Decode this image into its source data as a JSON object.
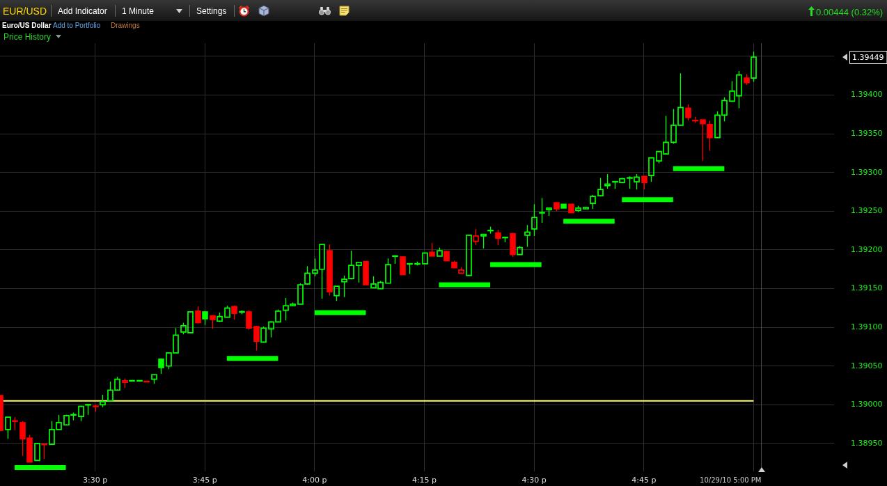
{
  "chart_data": {
    "type": "candlestick",
    "title": "EUR/USD",
    "subtitle": "Euro/US Dollar",
    "x": [
      "--10-29T15:17",
      "--10-29T15:18",
      "--10-29T15:19",
      "--10-29T15:20",
      "--10-29T15:21",
      "--10-29T15:22",
      "--10-29T15:23",
      "--10-29T15:24",
      "--10-29T15:25",
      "--10-29T15:26",
      "--10-29T15:27",
      "--10-29T15:28",
      "--10-29T15:29",
      "--10-29T15:30",
      "--10-29T15:31",
      "--10-29T15:32",
      "--10-29T15:33",
      "--10-29T15:34",
      "--10-29T15:35",
      "--10-29T15:36",
      "--10-29T15:37",
      "--10-29T15:38",
      "--10-29T15:39",
      "--10-29T15:40",
      "--10-29T15:41",
      "--10-29T15:42",
      "--10-29T15:43",
      "--10-29T15:44",
      "--10-29T15:45",
      "--10-29T15:46",
      "--10-29T15:47",
      "--10-29T15:48",
      "--10-29T15:49",
      "--10-29T15:50",
      "--10-29T15:51",
      "--10-29T15:52",
      "--10-29T15:53",
      "--10-29T15:54",
      "--10-29T15:55",
      "--10-29T15:56",
      "--10-29T15:57",
      "--10-29T15:58",
      "--10-29T15:59",
      "--10-29T16:00",
      "--10-29T16:01",
      "--10-29T16:02",
      "--10-29T16:03",
      "--10-29T16:04",
      "--10-29T16:05",
      "--10-29T16:06",
      "--10-29T16:07",
      "--10-29T16:08",
      "--10-29T16:09",
      "--10-29T16:10",
      "--10-29T16:11",
      "--10-29T16:12",
      "--10-29T16:13",
      "--10-29T16:14",
      "--10-29T16:15",
      "--10-29T16:16",
      "--10-29T16:17",
      "--10-29T16:18",
      "--10-29T16:19",
      "--10-29T16:20",
      "--10-29T16:21",
      "--10-29T16:22",
      "--10-29T16:23",
      "--10-29T16:24",
      "--10-29T16:25",
      "--10-29T16:26",
      "--10-29T16:27",
      "--10-29T16:28",
      "--10-29T16:29",
      "--10-29T16:30",
      "--10-29T16:31",
      "--10-29T16:32",
      "--10-29T16:33",
      "--10-29T16:34",
      "--10-29T16:35",
      "--10-29T16:36",
      "--10-29T16:37",
      "--10-29T16:38",
      "--10-29T16:39",
      "--10-29T16:40",
      "--10-29T16:41",
      "--10-29T16:42",
      "--10-29T16:43",
      "--10-29T16:44",
      "--10-29T16:45",
      "--10-29T16:46",
      "--10-29T16:47",
      "--10-29T16:48",
      "--10-29T16:49",
      "--10-29T16:50",
      "--10-29T16:51",
      "--10-29T16:52",
      "--10-29T16:53",
      "--10-29T16:54",
      "--10-29T16:55",
      "--10-29T16:56",
      "--10-29T16:57",
      "--10-29T16:58",
      "--10-29T16:59",
      "--10-29T17:00"
    ],
    "series": [
      {
        "ohlc": [
          [
            1.39012,
            1.39012,
            1.38967,
            1.38967
          ],
          [
            1.38968,
            1.38984,
            1.38956,
            1.38984
          ],
          [
            1.38979,
            1.38984,
            1.38967,
            1.38979
          ],
          [
            1.38977,
            1.38979,
            1.38934,
            1.38956
          ],
          [
            1.38957,
            1.38961,
            1.38926,
            1.38926
          ],
          [
            1.38928,
            1.3895,
            1.38928,
            1.3895
          ],
          [
            1.38949,
            1.3895,
            1.3893,
            1.38949
          ],
          [
            1.38949,
            1.38979,
            1.38949,
            1.38968
          ],
          [
            1.38968,
            1.38987,
            1.38968,
            1.38977
          ],
          [
            1.38974,
            1.38987,
            1.38974,
            1.38986
          ],
          [
            1.38987,
            1.3899,
            1.3898,
            1.38987
          ],
          [
            1.38985,
            1.38999,
            1.38979,
            1.38998
          ],
          [
            1.39,
            1.39,
            1.38987,
            1.39
          ],
          [
            1.38998,
            1.39,
            1.38991,
            1.38998
          ],
          [
            1.39,
            1.39013,
            1.38997,
            1.39004
          ],
          [
            1.39005,
            1.3903,
            1.39005,
            1.39019
          ],
          [
            1.39019,
            1.39036,
            1.39019,
            1.39033
          ],
          [
            1.39029,
            1.39034,
            1.39022,
            1.39031
          ],
          [
            1.39031,
            1.39031,
            1.39031,
            1.39031
          ],
          [
            1.39031,
            1.39031,
            1.39031,
            1.39031
          ],
          [
            1.3903,
            1.3903,
            1.3903,
            1.3903
          ],
          [
            1.39033,
            1.39039,
            1.39027,
            1.39039
          ],
          [
            1.39059,
            1.3906,
            1.3904,
            1.39048
          ],
          [
            1.3905,
            1.39067,
            1.39046,
            1.39067
          ],
          [
            1.39067,
            1.39099,
            1.39067,
            1.3909
          ],
          [
            1.39094,
            1.39106,
            1.39091,
            1.39102
          ],
          [
            1.39093,
            1.3912,
            1.39093,
            1.3912
          ],
          [
            1.39121,
            1.39127,
            1.39105,
            1.39106
          ],
          [
            1.3912,
            1.39121,
            1.39103,
            1.39111
          ],
          [
            1.39115,
            1.39115,
            1.39098,
            1.3911
          ],
          [
            1.39108,
            1.39119,
            1.39107,
            1.39114
          ],
          [
            1.39113,
            1.39128,
            1.39113,
            1.39125
          ],
          [
            1.39127,
            1.39128,
            1.3911,
            1.39118
          ],
          [
            1.3912,
            1.39122,
            1.39117,
            1.3912
          ],
          [
            1.3912,
            1.39122,
            1.39097,
            1.39099
          ],
          [
            1.39101,
            1.39102,
            1.3907,
            1.39082
          ],
          [
            1.39081,
            1.39101,
            1.39081,
            1.39099
          ],
          [
            1.39098,
            1.39108,
            1.39087,
            1.39107
          ],
          [
            1.39107,
            1.39123,
            1.39107,
            1.39121
          ],
          [
            1.39122,
            1.39138,
            1.39109,
            1.39128
          ],
          [
            1.39128,
            1.39132,
            1.39128,
            1.3913
          ],
          [
            1.3913,
            1.39157,
            1.3913,
            1.39155
          ],
          [
            1.39156,
            1.39179,
            1.39155,
            1.3917
          ],
          [
            1.3917,
            1.39189,
            1.39166,
            1.39174
          ],
          [
            1.39175,
            1.39207,
            1.39137,
            1.39207
          ],
          [
            1.39199,
            1.39207,
            1.39141,
            1.39146
          ],
          [
            1.39141,
            1.39153,
            1.39134,
            1.39153
          ],
          [
            1.39159,
            1.39167,
            1.39139,
            1.39162
          ],
          [
            1.39163,
            1.39199,
            1.39162,
            1.3918
          ],
          [
            1.3918,
            1.39184,
            1.39158,
            1.39184
          ],
          [
            1.39185,
            1.39185,
            1.39155,
            1.39155
          ],
          [
            1.39151,
            1.39166,
            1.39151,
            1.39156
          ],
          [
            1.3915,
            1.3916,
            1.3915,
            1.39158
          ],
          [
            1.39157,
            1.39189,
            1.39157,
            1.39181
          ],
          [
            1.39192,
            1.39192,
            1.39182,
            1.39192
          ],
          [
            1.39191,
            1.39192,
            1.39168,
            1.39168
          ],
          [
            1.39182,
            1.39182,
            1.39169,
            1.39182
          ],
          [
            1.39182,
            1.39185,
            1.3918,
            1.39182
          ],
          [
            1.39182,
            1.39196,
            1.39182,
            1.39196
          ],
          [
            1.39197,
            1.39209,
            1.39192,
            1.39192
          ],
          [
            1.39192,
            1.39203,
            1.39192,
            1.39199
          ],
          [
            1.39198,
            1.39199,
            1.39186,
            1.39186
          ],
          [
            1.39184,
            1.39186,
            1.39177,
            1.39177
          ],
          [
            1.3917,
            1.39178,
            1.3917,
            1.39174
          ],
          [
            1.39167,
            1.39219,
            1.39167,
            1.39219
          ],
          [
            1.39211,
            1.39227,
            1.39206,
            1.39218
          ],
          [
            1.39218,
            1.3922,
            1.39202,
            1.3922
          ],
          [
            1.39225,
            1.3923,
            1.39221,
            1.39225
          ],
          [
            1.39222,
            1.39226,
            1.39206,
            1.39215
          ],
          [
            1.39216,
            1.39216,
            1.3921,
            1.39216
          ],
          [
            1.39221,
            1.39222,
            1.39191,
            1.39194
          ],
          [
            1.39194,
            1.39205,
            1.39194,
            1.39203
          ],
          [
            1.39219,
            1.39232,
            1.39204,
            1.39223
          ],
          [
            1.39227,
            1.39259,
            1.39218,
            1.39242
          ],
          [
            1.39248,
            1.39267,
            1.39235,
            1.39248
          ],
          [
            1.39252,
            1.39254,
            1.39244,
            1.39254
          ],
          [
            1.39261,
            1.39261,
            1.3925,
            1.39253
          ],
          [
            1.39259,
            1.39259,
            1.39254,
            1.39254
          ],
          [
            1.39259,
            1.39259,
            1.39248,
            1.39248
          ],
          [
            1.39251,
            1.39257,
            1.39249,
            1.39254
          ],
          [
            1.39253,
            1.39255,
            1.39253,
            1.39255
          ],
          [
            1.3926,
            1.39271,
            1.39253,
            1.39269
          ],
          [
            1.3927,
            1.39293,
            1.39269,
            1.39278
          ],
          [
            1.39283,
            1.39298,
            1.39279,
            1.39285
          ],
          [
            1.39288,
            1.39288,
            1.39279,
            1.39288
          ],
          [
            1.39287,
            1.39293,
            1.39287,
            1.39292
          ],
          [
            1.39293,
            1.39295,
            1.39279,
            1.39293
          ],
          [
            1.39288,
            1.39298,
            1.39278,
            1.39294
          ],
          [
            1.39295,
            1.39295,
            1.39278,
            1.39287
          ],
          [
            1.39296,
            1.39319,
            1.39288,
            1.39319
          ],
          [
            1.39315,
            1.39327,
            1.39312,
            1.39327
          ],
          [
            1.39324,
            1.39373,
            1.39324,
            1.39339
          ],
          [
            1.39339,
            1.39382,
            1.39337,
            1.39361
          ],
          [
            1.39361,
            1.39428,
            1.39361,
            1.39384
          ],
          [
            1.39383,
            1.39388,
            1.39367,
            1.39371
          ],
          [
            1.39367,
            1.39372,
            1.39364,
            1.39367
          ],
          [
            1.39368,
            1.39368,
            1.39315,
            1.39363
          ],
          [
            1.39362,
            1.39367,
            1.39328,
            1.39345
          ],
          [
            1.39345,
            1.39379,
            1.39345,
            1.39374
          ],
          [
            1.39374,
            1.39397,
            1.39366,
            1.39393
          ],
          [
            1.39392,
            1.39418,
            1.39392,
            1.39405
          ],
          [
            1.39399,
            1.39431,
            1.39383,
            1.39426
          ],
          [
            1.39422,
            1.39427,
            1.39413,
            1.39416
          ],
          [
            1.39422,
            1.39456,
            1.39417,
            1.39449
          ]
        ],
        "colors": [
          "#ff0000",
          "#00ff00",
          "#ff0000",
          "#ff0000",
          "#ff0000",
          "#00ff00",
          "#ff0000",
          "#00ff00",
          "#00ff00",
          "#00ff00",
          "#00ff00",
          "#00ff00",
          "#00ff00",
          "#ff0000",
          "#00ff00",
          "#00ff00",
          "#00ff00",
          "#ff0000",
          "#00ff00",
          "#00ff00",
          "#ff0000",
          "#00ff00",
          "#00ff00",
          "#00ff00",
          "#00ff00",
          "#00ff00",
          "#00ff00",
          "#ff0000",
          "#00ff00",
          "#ff0000",
          "#00ff00",
          "#00ff00",
          "#ff0000",
          "#00ff00",
          "#ff0000",
          "#ff0000",
          "#00ff00",
          "#00ff00",
          "#00ff00",
          "#00ff00",
          "#00ff00",
          "#00ff00",
          "#00ff00",
          "#00ff00",
          "#00ff00",
          "#ff0000",
          "#00ff00",
          "#00ff00",
          "#00ff00",
          "#00ff00",
          "#ff0000",
          "#00ff00",
          "#00ff00",
          "#00ff00",
          "#00ff00",
          "#ff0000",
          "#00ff00",
          "#00ff00",
          "#00ff00",
          "#ff0000",
          "#00ff00",
          "#ff0000",
          "#ff0000",
          "#ff0000",
          "#00ff00",
          "#ff0000",
          "#00ff00",
          "#00ff00",
          "#ff0000",
          "#00ff00",
          "#ff0000",
          "#00ff00",
          "#00ff00",
          "#00ff00",
          "#00ff00",
          "#00ff00",
          "#ff0000",
          "#00ff00",
          "#ff0000",
          "#00ff00",
          "#00ff00",
          "#00ff00",
          "#00ff00",
          "#00ff00",
          "#00ff00",
          "#00ff00",
          "#00ff00",
          "#00ff00",
          "#ff0000",
          "#00ff00",
          "#00ff00",
          "#00ff00",
          "#00ff00",
          "#00ff00",
          "#ff0000",
          "#ff0000",
          "#ff0000",
          "#ff0000",
          "#00ff00",
          "#00ff00",
          "#00ff00",
          "#00ff00",
          "#ff0000",
          "#00ff00"
        ]
      },
      {
        "type": "line",
        "x": [
          "--10-29T15:19",
          "--10-29T15:26"
        ],
        "values": [
          1.38919,
          1.38919
        ],
        "color": "#00ff00"
      },
      {
        "type": "line",
        "x": [
          "--10-29T15:48",
          "--10-29T15:55"
        ],
        "values": [
          1.3906,
          1.3906
        ],
        "color": "#00ff00"
      },
      {
        "type": "line",
        "x": [
          "--10-29T16:00",
          "--10-29T16:07"
        ],
        "values": [
          1.39119,
          1.39119
        ],
        "color": "#00ff00"
      },
      {
        "type": "line",
        "x": [
          "--10-29T16:17",
          "--10-29T16:24"
        ],
        "values": [
          1.39155,
          1.39155
        ],
        "color": "#00ff00"
      },
      {
        "type": "line",
        "x": [
          "--10-29T16:24",
          "--10-29T16:31"
        ],
        "values": [
          1.39181,
          1.39181
        ],
        "color": "#00ff00"
      },
      {
        "type": "line",
        "x": [
          "--10-29T16:34",
          "--10-29T16:41"
        ],
        "values": [
          1.39237,
          1.39237
        ],
        "color": "#00ff00"
      },
      {
        "type": "line",
        "x": [
          "--10-29T16:42",
          "--10-29T16:49"
        ],
        "values": [
          1.39265,
          1.39265
        ],
        "color": "#00ff00"
      },
      {
        "type": "line",
        "x": [
          "--10-29T16:49",
          "--10-29T16:56"
        ],
        "values": [
          1.39305,
          1.39305
        ],
        "color": "#00ff00"
      }
    ],
    "xlim": [
      "--10-29T15:17",
      "--10-29T17:11"
    ],
    "xticks": [
      {
        "value": "--10-29T15:30",
        "label": "3:30 p"
      },
      {
        "value": "--10-29T15:45",
        "label": "3:45 p"
      },
      {
        "value": "--10-29T16:00",
        "label": "4:00 p"
      },
      {
        "value": "--10-29T16:15",
        "label": "4:15 p"
      },
      {
        "value": "--10-29T16:30",
        "label": "4:30 p"
      },
      {
        "value": "--10-29T16:45",
        "label": "4:45 p"
      },
      {
        "value": "--10-29T17:00",
        "label": null
      }
    ],
    "ylim": [
      1.38914,
      1.39467
    ],
    "yticks": [
      {
        "value": 1.3895,
        "label": "1.38950"
      },
      {
        "value": 1.39,
        "label": "1.39000"
      },
      {
        "value": 1.3905,
        "label": "1.39050"
      },
      {
        "value": 1.391,
        "label": "1.39100"
      },
      {
        "value": 1.3915,
        "label": "1.39150"
      },
      {
        "value": 1.392,
        "label": "1.39200"
      },
      {
        "value": 1.3925,
        "label": "1.39250"
      },
      {
        "value": 1.393,
        "label": "1.39300"
      },
      {
        "value": 1.3935,
        "label": "1.39350"
      },
      {
        "value": 1.394,
        "label": "1.39400"
      },
      {
        "value": 1.3945,
        "label": null
      }
    ],
    "grid": true,
    "ref_lines": [
      {
        "axis": "y",
        "value": 1.39005,
        "color": "#ffff66"
      },
      {
        "axis": "x",
        "value": "--10-29T17:01",
        "label": "10/29/10 5:00 PM",
        "color": "#4a4a4a"
      }
    ],
    "annotations": [
      "Add Indicator",
      "1 Minute",
      "Settings",
      "Add to Portfolio",
      "Drawings",
      "Price History",
      "0.00444 (0.32%)",
      "1.39449"
    ]
  }
}
